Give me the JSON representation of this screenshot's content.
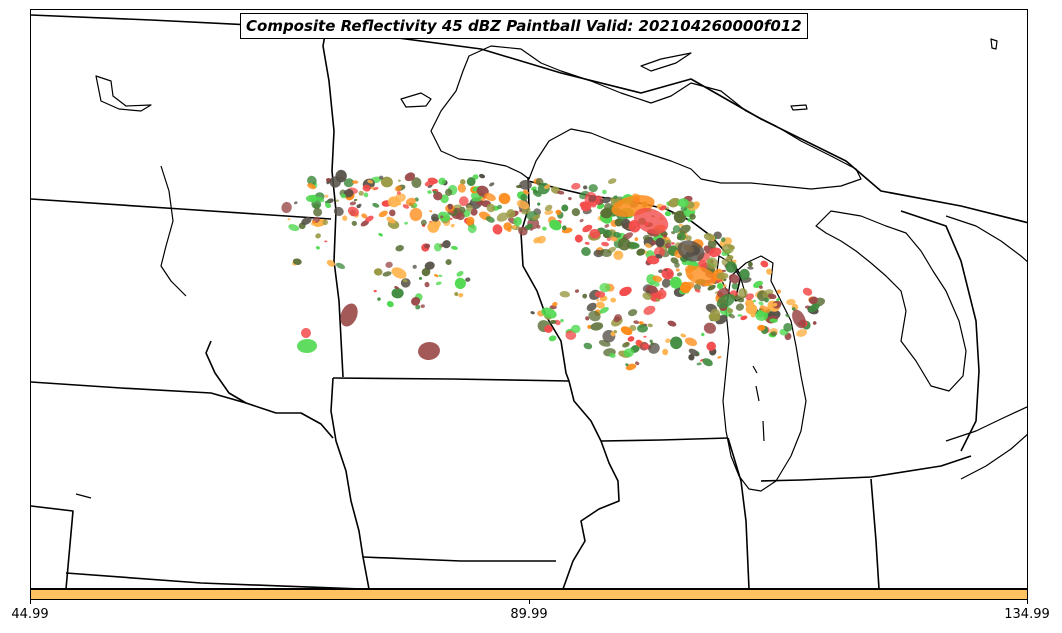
{
  "title": "Composite Reflectivity 45 dBZ Paintball Valid: 202104260000f012",
  "colorbar": {
    "fill_color": "#ffc261",
    "ticks": [
      "44.99",
      "89.99",
      "134.99"
    ]
  },
  "paintball_colors": {
    "green": "#4fd84f",
    "red": "#f44b4b",
    "orange": "#ff8c1a",
    "light_orange": "#ffb24a",
    "olive": "#9a9a45",
    "dark_olive": "#5a6e34",
    "maroon": "#9a4747",
    "dark_gray": "#555047",
    "dark_green": "#3e8a3e"
  }
}
